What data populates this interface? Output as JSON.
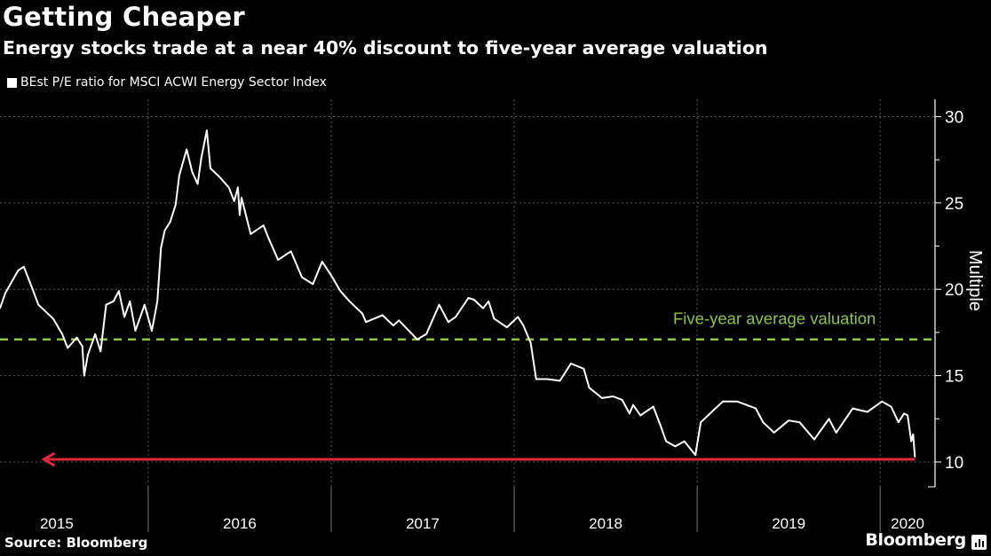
{
  "header": {
    "title": "Getting Cheaper",
    "subtitle": "Energy stocks trade at a near 40% discount to five-year average valuation"
  },
  "footer": {
    "source": "Source: Bloomberg",
    "brand": "Bloomberg"
  },
  "colors": {
    "background": "#000000",
    "line": "#ffffff",
    "average": "#8cc63f",
    "arrow": "#e0283c",
    "grid": "#555555"
  },
  "chart_data": {
    "type": "line",
    "title": "Getting Cheaper",
    "subtitle": "Energy stocks trade at a near 40% discount to five-year average valuation",
    "xlabel": "",
    "ylabel": "Multiple",
    "xlim": [
      2015.19,
      2020.3
    ],
    "ylim": [
      8.56,
      31.0
    ],
    "grid": true,
    "legend": "top-left",
    "x_tick_labels": [
      {
        "label": "2015",
        "center": 2015.5
      },
      {
        "label": "2016",
        "center": 2016.5
      },
      {
        "label": "2017",
        "center": 2017.5
      },
      {
        "label": "2018",
        "center": 2018.5
      },
      {
        "label": "2019",
        "center": 2019.5
      },
      {
        "label": "2020",
        "center": 2020.15
      }
    ],
    "x_dividers": [
      2016,
      2017,
      2018,
      2019,
      2020
    ],
    "y_ticks": [
      10,
      15,
      20,
      25,
      30
    ],
    "y_minor_ticks": [
      12.5,
      17.5,
      22.5,
      27.5
    ],
    "series": [
      {
        "name": "BEst P/E ratio for MSCI ACWI Energy Sector Index",
        "x": [
          2015.19,
          2015.22,
          2015.29,
          2015.32,
          2015.35,
          2015.4,
          2015.48,
          2015.53,
          2015.56,
          2015.61,
          2015.64,
          2015.65,
          2015.67,
          2015.71,
          2015.74,
          2015.77,
          2015.81,
          2015.84,
          2015.87,
          2015.9,
          2015.93,
          2015.98,
          2016.02,
          2016.05,
          2016.07,
          2016.09,
          2016.12,
          2016.15,
          2016.17,
          2016.21,
          2016.24,
          2016.27,
          2016.29,
          2016.32,
          2016.34,
          2016.39,
          2016.44,
          2016.47,
          2016.49,
          2016.5,
          2016.51,
          2016.56,
          2016.63,
          2016.66,
          2016.71,
          2016.78,
          2016.84,
          2016.9,
          2016.95,
          2017.0,
          2017.05,
          2017.1,
          2017.17,
          2017.19,
          2017.28,
          2017.34,
          2017.37,
          2017.47,
          2017.52,
          2017.59,
          2017.64,
          2017.68,
          2017.75,
          2017.78,
          2017.83,
          2017.86,
          2017.89,
          2017.96,
          2018.02,
          2018.05,
          2018.09,
          2018.12,
          2018.18,
          2018.25,
          2018.31,
          2018.38,
          2018.41,
          2018.48,
          2018.54,
          2018.59,
          2018.63,
          2018.65,
          2018.69,
          2018.76,
          2018.8,
          2018.83,
          2018.88,
          2018.93,
          2018.99,
          2019.02,
          2019.07,
          2019.14,
          2019.22,
          2019.27,
          2019.32,
          2019.36,
          2019.42,
          2019.5,
          2019.56,
          2019.64,
          2019.72,
          2019.76,
          2019.85,
          2019.93,
          2020.01,
          2020.06,
          2020.1,
          2020.13,
          2020.15,
          2020.17,
          2020.18,
          2020.19
        ],
        "values": [
          18.9,
          19.8,
          21.1,
          21.3,
          20.5,
          19.1,
          18.3,
          17.4,
          16.6,
          17.2,
          16.7,
          15.0,
          16.2,
          17.4,
          16.4,
          19.1,
          19.3,
          19.9,
          18.4,
          19.3,
          17.6,
          19.1,
          17.6,
          19.3,
          22.4,
          23.4,
          23.9,
          24.9,
          26.6,
          28.1,
          26.8,
          26.1,
          27.6,
          29.2,
          27.0,
          26.5,
          25.9,
          25.1,
          25.9,
          24.3,
          25.3,
          23.2,
          23.7,
          22.9,
          21.7,
          22.2,
          20.7,
          20.3,
          21.6,
          20.8,
          19.9,
          19.3,
          18.6,
          18.1,
          18.5,
          17.9,
          18.2,
          17.1,
          17.4,
          19.1,
          18.1,
          18.4,
          19.5,
          19.4,
          18.9,
          19.3,
          18.3,
          17.8,
          18.4,
          17.9,
          16.9,
          14.8,
          14.8,
          14.7,
          15.7,
          15.4,
          14.3,
          13.7,
          13.8,
          13.6,
          12.8,
          13.3,
          12.7,
          13.2,
          12.1,
          11.2,
          10.9,
          11.2,
          10.4,
          12.3,
          12.8,
          13.5,
          13.5,
          13.3,
          13.1,
          12.3,
          11.7,
          12.4,
          12.3,
          11.3,
          12.5,
          11.7,
          13.1,
          12.9,
          13.5,
          13.2,
          12.3,
          12.8,
          12.7,
          11.2,
          11.6,
          10.3
        ]
      }
    ],
    "reference_lines": [
      {
        "name": "Five-year average valuation",
        "value": 17.1,
        "label": "Five-year average valuation"
      }
    ],
    "annotations": [
      {
        "type": "arrow",
        "value": 10.15,
        "from": 2020.19,
        "to": 2015.43
      }
    ]
  }
}
